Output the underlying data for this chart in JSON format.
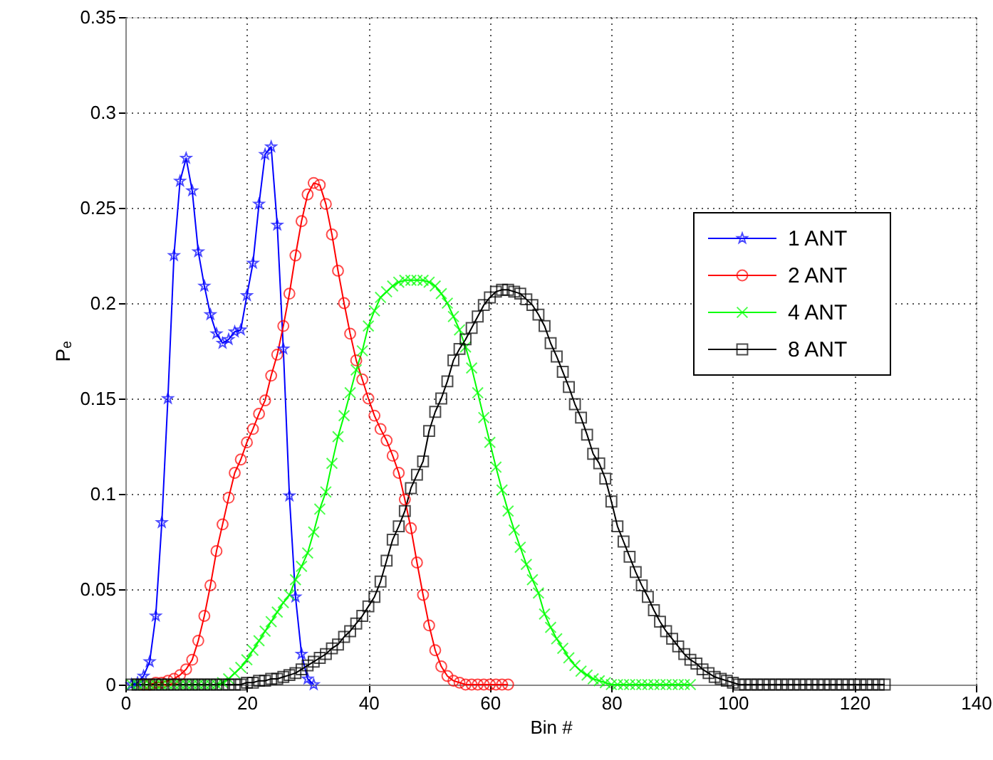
{
  "chart_data": {
    "type": "line",
    "xlabel": "Bin #",
    "ylabel": "Pₑ",
    "xlim": [
      0,
      140
    ],
    "ylim": [
      0,
      0.35
    ],
    "xticks": [
      0,
      20,
      40,
      60,
      80,
      100,
      120,
      140
    ],
    "yticks": [
      {
        "value": 0,
        "label": "0"
      },
      {
        "value": 0.05,
        "label": "0.05"
      },
      {
        "value": 0.1,
        "label": "0.1"
      },
      {
        "value": 0.15,
        "label": "0.15"
      },
      {
        "value": 0.2,
        "label": "0.2"
      },
      {
        "value": 0.25,
        "label": "0.25"
      },
      {
        "value": 0.3,
        "label": "0.3"
      },
      {
        "value": 0.35,
        "label": "0.35"
      }
    ],
    "grid": true,
    "legend": "right",
    "line_style": "solid",
    "x": [
      1,
      2,
      3,
      4,
      5,
      6,
      7,
      8,
      9,
      10,
      11,
      12,
      13,
      14,
      15,
      16,
      17,
      18,
      19,
      20,
      21,
      22,
      23,
      24,
      25,
      26,
      27,
      28,
      29,
      30,
      31,
      32,
      33,
      34,
      35,
      36,
      37,
      38,
      39,
      40,
      41,
      42,
      43,
      44,
      45,
      46,
      47,
      48,
      49,
      50,
      51,
      52,
      53,
      54,
      55,
      56,
      57,
      58,
      59,
      60,
      61,
      62,
      63,
      64,
      65,
      66,
      67,
      68,
      69,
      70,
      71,
      72,
      73,
      74,
      75,
      76,
      77,
      78,
      79,
      80,
      81,
      82,
      83,
      84,
      85,
      86,
      87,
      88,
      89,
      90,
      91,
      92,
      93,
      94,
      95,
      96,
      97,
      98,
      99,
      100,
      101,
      102,
      103,
      104,
      105,
      106,
      107,
      108,
      109,
      110,
      111,
      112,
      113,
      114,
      115,
      116,
      117,
      118,
      119,
      120,
      121,
      122,
      123,
      124,
      125
    ],
    "series": [
      {
        "name": "1 ANT",
        "color": "#0000ff",
        "marker": "star",
        "values": [
          0,
          0.001,
          0.0045,
          0.012,
          0.036,
          0.085,
          0.15,
          0.225,
          0.264,
          0.276,
          0.259,
          0.227,
          0.209,
          0.194,
          0.184,
          0.179,
          0.181,
          0.185,
          0.186,
          0.204,
          0.221,
          0.252,
          0.278,
          0.282,
          0.241,
          0.176,
          0.099,
          0.046,
          0.016,
          0.003,
          0,
          null,
          null,
          null,
          null,
          null,
          null,
          null,
          null,
          null,
          null,
          null,
          null,
          null,
          null,
          null,
          null,
          null,
          null,
          null,
          null,
          null,
          null,
          null,
          null,
          null,
          null,
          null,
          null,
          null,
          null,
          null,
          null,
          null,
          null,
          null,
          null,
          null,
          null,
          null,
          null,
          null,
          null,
          null,
          null,
          null,
          null,
          null,
          null,
          null,
          null,
          null,
          null,
          null,
          null,
          null,
          null,
          null,
          null,
          null,
          null,
          null,
          null,
          null,
          null,
          null,
          null,
          null,
          null,
          null,
          null,
          null,
          null,
          null,
          null,
          null,
          null,
          null,
          null,
          null,
          null,
          null,
          null,
          null,
          null,
          null,
          null,
          null,
          null,
          null,
          null,
          null,
          null,
          null,
          null
        ]
      },
      {
        "name": "2 ANT",
        "color": "#ff0000",
        "marker": "circle",
        "values": [
          null,
          null,
          0,
          0,
          0.001,
          0.001,
          0.002,
          0.003,
          0.005,
          0.008,
          0.013,
          0.023,
          0.036,
          0.052,
          0.07,
          0.084,
          0.098,
          0.111,
          0.118,
          0.127,
          0.134,
          0.142,
          0.149,
          0.162,
          0.173,
          0.188,
          0.205,
          0.225,
          0.243,
          0.257,
          0.263,
          0.262,
          0.252,
          0.236,
          0.217,
          0.2,
          0.184,
          0.17,
          0.16,
          0.15,
          0.141,
          0.134,
          0.128,
          0.12,
          0.111,
          0.097,
          0.082,
          0.064,
          0.047,
          0.031,
          0.018,
          0.0095,
          0.0045,
          0.002,
          0.001,
          0,
          0,
          0,
          0,
          0,
          0,
          0,
          0,
          null,
          null,
          null,
          null,
          null,
          null,
          null,
          null,
          null,
          null,
          null,
          null,
          null,
          null,
          null,
          null,
          null,
          null,
          null,
          null,
          null,
          null,
          null,
          null,
          null,
          null,
          null,
          null,
          null,
          null,
          null,
          null,
          null,
          null,
          null,
          null,
          null,
          null,
          null,
          null,
          null,
          null,
          null,
          null,
          null,
          null,
          null,
          null,
          null,
          null,
          null,
          null,
          null,
          null,
          null,
          null,
          null,
          null,
          null,
          null,
          null,
          null
        ]
      },
      {
        "name": "4 ANT",
        "color": "#00ff00",
        "marker": "cross",
        "values": [
          0,
          0,
          0,
          0,
          0,
          0,
          0,
          0,
          0,
          0,
          0,
          0,
          0,
          0,
          0,
          0.001,
          0.003,
          0.006,
          0.009,
          0.013,
          0.018,
          0.023,
          0.028,
          0.033,
          0.038,
          0.043,
          0.047,
          0.055,
          0.062,
          0.069,
          0.08,
          0.092,
          0.101,
          0.116,
          0.13,
          0.141,
          0.153,
          0.165,
          0.175,
          0.188,
          0.196,
          0.203,
          0.206,
          0.209,
          0.211,
          0.212,
          0.212,
          0.212,
          0.212,
          0.211,
          0.209,
          0.205,
          0.2,
          0.193,
          0.186,
          0.177,
          0.166,
          0.153,
          0.14,
          0.127,
          0.114,
          0.102,
          0.091,
          0.081,
          0.072,
          0.063,
          0.055,
          0.048,
          0.037,
          0.03,
          0.024,
          0.019,
          0.014,
          0.01,
          0.007,
          0.005,
          0.003,
          0.002,
          0.001,
          0,
          0,
          0,
          0,
          0,
          0,
          0,
          0,
          0,
          0,
          0,
          0,
          0,
          0,
          null,
          null,
          null,
          null,
          null,
          null,
          null,
          null,
          null,
          null,
          null,
          null,
          null,
          null,
          null,
          null,
          null,
          null,
          null,
          null,
          null,
          null,
          null,
          null,
          null,
          null,
          null,
          null,
          null,
          null,
          null,
          null
        ]
      },
      {
        "name": "8 ANT",
        "color": "#000000",
        "marker": "square",
        "values": [
          0,
          0,
          0,
          0,
          0,
          0,
          0,
          0,
          0,
          0,
          0,
          0,
          0,
          0,
          0,
          0,
          0,
          0,
          0,
          0.001,
          0.001,
          0.002,
          0.002,
          0.003,
          0.003,
          0.004,
          0.005,
          0.006,
          0.008,
          0.01,
          0.012,
          0.014,
          0.016,
          0.019,
          0.021,
          0.025,
          0.028,
          0.032,
          0.036,
          0.041,
          0.046,
          0.054,
          0.065,
          0.076,
          0.083,
          0.091,
          0.103,
          0.11,
          0.117,
          0.133,
          0.143,
          0.15,
          0.159,
          0.17,
          0.176,
          0.181,
          0.187,
          0.193,
          0.199,
          0.203,
          0.206,
          0.207,
          0.207,
          0.206,
          0.205,
          0.202,
          0.199,
          0.194,
          0.188,
          0.179,
          0.172,
          0.164,
          0.156,
          0.147,
          0.14,
          0.131,
          0.121,
          0.116,
          0.108,
          0.096,
          0.083,
          0.075,
          0.067,
          0.059,
          0.052,
          0.046,
          0.039,
          0.033,
          0.028,
          0.024,
          0.02,
          0.016,
          0.013,
          0.011,
          0.008,
          0.006,
          0.004,
          0.003,
          0.002,
          0.001,
          0,
          0,
          0,
          0,
          0,
          0,
          0,
          0,
          0,
          0,
          0,
          0,
          0,
          0,
          0,
          0,
          0,
          0,
          0,
          0,
          0,
          0,
          0,
          0,
          0
        ]
      }
    ]
  }
}
